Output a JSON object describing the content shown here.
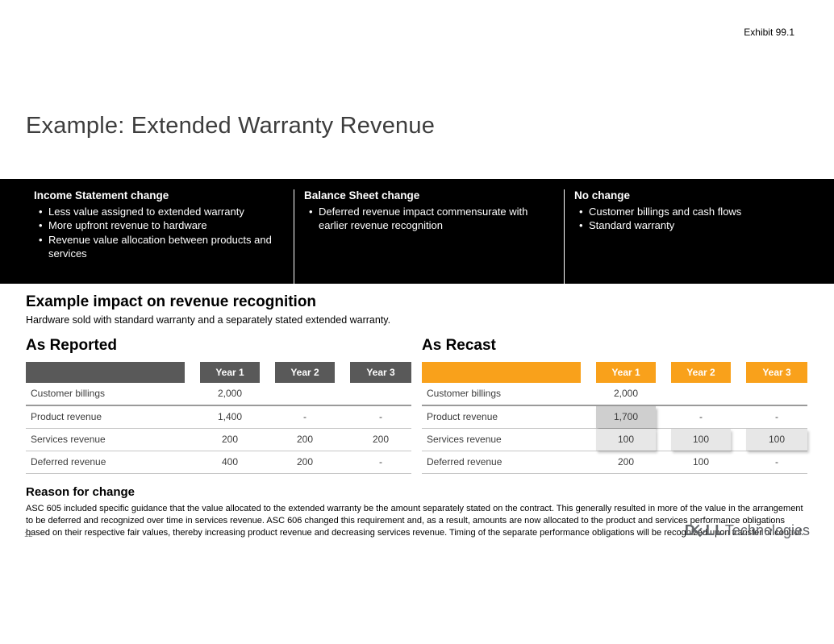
{
  "exhibit_label": "Exhibit 99.1",
  "title": "Example: Extended Warranty Revenue",
  "banner": {
    "columns": [
      {
        "heading": "Income Statement change",
        "bullet_char": "•",
        "bullets": [
          "Less value assigned to extended warranty",
          "More upfront revenue to hardware",
          "Revenue value allocation between products and services"
        ]
      },
      {
        "heading": "Balance Sheet change",
        "bullet_char": "•",
        "bullets": [
          "Deferred revenue impact commensurate with earlier revenue recognition"
        ]
      },
      {
        "heading": "No change",
        "bullet_char": "•",
        "bullets": [
          "Customer billings and cash flows",
          "Standard warranty"
        ]
      }
    ]
  },
  "section": {
    "heading": "Example impact on revenue recognition",
    "subheading": "Hardware sold with standard warranty and a separately stated extended warranty."
  },
  "tables": [
    {
      "title": "As Reported",
      "header_color": "#595959",
      "columns": [
        "Year 1",
        "Year 2",
        "Year 3"
      ],
      "rows": [
        {
          "label": "Customer billings",
          "values": [
            "2,000",
            "",
            ""
          ]
        },
        {
          "label": "Product revenue",
          "values": [
            "1,400",
            "-",
            "-"
          ]
        },
        {
          "label": "Services revenue",
          "values": [
            "200",
            "200",
            "200"
          ]
        },
        {
          "label": "Deferred revenue",
          "values": [
            "400",
            "200",
            "-"
          ]
        }
      ]
    },
    {
      "title": "As Recast",
      "header_color": "#F9A11B",
      "columns": [
        "Year 1",
        "Year 2",
        "Year 3"
      ],
      "rows": [
        {
          "label": "Customer billings",
          "values": [
            "2,000",
            "",
            ""
          ]
        },
        {
          "label": "Product revenue",
          "values": [
            "1,700",
            "-",
            "-"
          ]
        },
        {
          "label": "Services revenue",
          "values": [
            "100",
            "100",
            "100"
          ]
        },
        {
          "label": "Deferred revenue",
          "values": [
            "200",
            "100",
            "-"
          ]
        }
      ]
    }
  ],
  "reason": {
    "heading": "Reason for change",
    "body": "ASC 605 included specific guidance that the value allocated to the extended warranty be the amount separately stated on the contract.  This generally resulted in more of the value in the arrangement to be deferred and recognized over time in services revenue.  ASC 606 changed this requirement and, as a result, amounts are now allocated to the product and services performance obligations based on their respective fair values, thereby increasing product revenue and decreasing services revenue.  Timing of the separate performance obligations will be recognized upon transfer of control."
  },
  "footer": {
    "page_number": "12",
    "logo": {
      "d": "D",
      "e": "E",
      "ll": "LL",
      "tech": "Technologies"
    }
  },
  "colors": {
    "banner_background": "#000000",
    "reported_header": "#595959",
    "recast_header": "#F9A11B",
    "highlight_dark": "#cfcfcf",
    "highlight_light": "#e7e7e7"
  }
}
